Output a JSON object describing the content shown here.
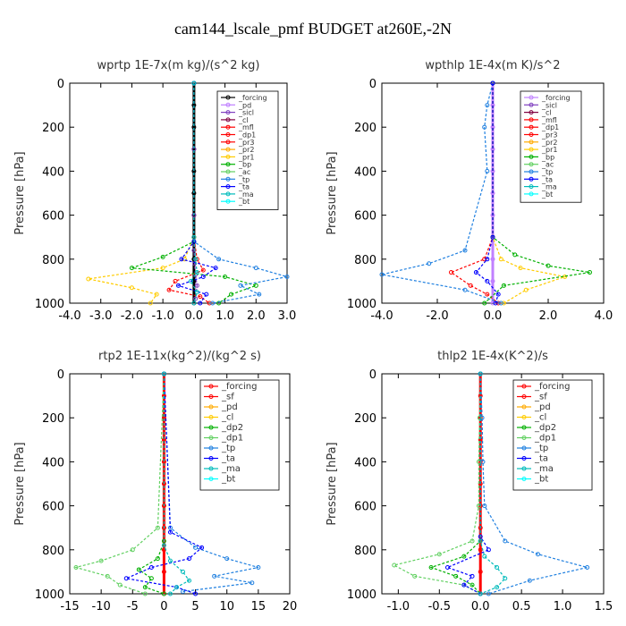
{
  "page": {
    "title": "cam144_lscale_pmf  BUDGET at260E,-2N"
  },
  "chart_data": [
    {
      "type": "line",
      "title": "wprtp  1E-7x(m kg)/(s^2 kg)",
      "ylabel": "Pressure [hPa]",
      "ylim": [
        1000,
        0
      ],
      "yticks": [
        "0",
        "200",
        "400",
        "600",
        "800",
        "1000"
      ],
      "xlim": [
        -4.0,
        3.0
      ],
      "xticks": [
        "-4.0",
        "-3.0",
        "-2.0",
        "-1.0",
        "0.0",
        "1.0",
        "2.0",
        "3.0"
      ],
      "legend": [
        "_forcing",
        "_pd",
        "_sicl",
        "_cl",
        "_mfl",
        "_dp1",
        "_pr3",
        "_pr2",
        "_pr1",
        "_bp",
        "_ac",
        "_tp",
        "_ta",
        "_ma",
        "_bt"
      ],
      "colors": [
        "#000000",
        "#c080ff",
        "#8040c0",
        "#800040",
        "#ff0000",
        "#ff0000",
        "#ff0000",
        "#ffaa00",
        "#ffcc00",
        "#00b000",
        "#60d060",
        "#2080e0",
        "#0000ff",
        "#00bbbb",
        "#00ffff"
      ],
      "series": [
        {
          "name": "_forcing",
          "x": [
            0,
            0,
            0,
            0,
            0,
            0,
            0,
            0,
            0,
            0,
            0
          ],
          "y": [
            0,
            100,
            200,
            300,
            400,
            500,
            600,
            700,
            800,
            900,
            1000
          ]
        },
        {
          "name": "_sicl",
          "x": [
            0,
            0,
            0,
            0,
            0.02,
            0.05,
            0.1,
            0.05
          ],
          "y": [
            0,
            300,
            600,
            760,
            820,
            870,
            920,
            980
          ]
        },
        {
          "name": "_dp1",
          "x": [
            0,
            0,
            0.1,
            0.3,
            -0.6,
            -0.8,
            0.2,
            0.5
          ],
          "y": [
            0,
            700,
            800,
            850,
            900,
            940,
            970,
            1000
          ]
        },
        {
          "name": "_pr1",
          "x": [
            0,
            0,
            -0.3,
            -1.0,
            -3.4,
            -2.0,
            -1.2,
            -1.4
          ],
          "y": [
            0,
            700,
            800,
            840,
            890,
            930,
            960,
            1000
          ]
        },
        {
          "name": "_bp",
          "x": [
            0,
            0,
            -1.0,
            -2.0,
            1.0,
            2.0,
            1.2,
            0.8
          ],
          "y": [
            0,
            720,
            790,
            840,
            880,
            920,
            960,
            1000
          ]
        },
        {
          "name": "_tp",
          "x": [
            0,
            0,
            0.8,
            2.0,
            3.0,
            1.5,
            2.1,
            0.6
          ],
          "y": [
            0,
            720,
            800,
            840,
            880,
            920,
            960,
            1000
          ]
        },
        {
          "name": "_ta",
          "x": [
            0,
            0,
            -0.4,
            0.7,
            0.3,
            -0.5,
            0.4,
            0.2
          ],
          "y": [
            0,
            720,
            800,
            840,
            880,
            920,
            960,
            1000
          ]
        },
        {
          "name": "_ma",
          "x": [
            0,
            0,
            0.05,
            0.1,
            -0.1,
            0.1,
            0
          ],
          "y": [
            0,
            700,
            800,
            860,
            900,
            950,
            1000
          ]
        }
      ]
    },
    {
      "type": "line",
      "title": "wpthlp  1E-4x(m K)/s^2",
      "ylabel": "Pressure [hPa]",
      "ylim": [
        1000,
        0
      ],
      "yticks": [
        "0",
        "200",
        "400",
        "600",
        "800",
        "1000"
      ],
      "xlim": [
        -4.0,
        4.0
      ],
      "xticks": [
        "-4.0",
        "-2.0",
        "0.0",
        "2.0",
        "4.0"
      ],
      "legend": [
        "_forcing",
        "_sicl",
        "_cl",
        "_mfl",
        "_dp1",
        "_pr3",
        "_pr2",
        "_pr1",
        "_bp",
        "_ac",
        "_tp",
        "_ta",
        "_ma",
        "_bt"
      ],
      "colors": [
        "#c080ff",
        "#8040c0",
        "#800040",
        "#ff0000",
        "#ff0000",
        "#ff0000",
        "#ffaa00",
        "#ffcc00",
        "#00b000",
        "#60d060",
        "#2080e0",
        "#0000ff",
        "#00bbbb",
        "#00ffff"
      ],
      "series": [
        {
          "name": "_forcing",
          "x": [
            0,
            0,
            0,
            0,
            0,
            0,
            0,
            0,
            0,
            0,
            0
          ],
          "y": [
            0,
            100,
            200,
            300,
            400,
            500,
            600,
            700,
            800,
            900,
            1000
          ]
        },
        {
          "name": "_dp1",
          "x": [
            0,
            0,
            -0.3,
            -1.5,
            -0.8,
            -0.2,
            0.2
          ],
          "y": [
            0,
            700,
            800,
            860,
            920,
            960,
            1000
          ]
        },
        {
          "name": "_pr1",
          "x": [
            0,
            0,
            0.3,
            1.0,
            2.6,
            1.2,
            0.4
          ],
          "y": [
            0,
            700,
            800,
            840,
            880,
            940,
            1000
          ]
        },
        {
          "name": "_bp",
          "x": [
            0,
            0,
            0.8,
            2.0,
            3.5,
            0.4,
            -0.3
          ],
          "y": [
            0,
            700,
            780,
            830,
            860,
            920,
            1000
          ]
        },
        {
          "name": "_tp",
          "x": [
            0,
            -0.2,
            -0.3,
            -0.2,
            -1.0,
            -2.3,
            -4.0,
            -1.0,
            0.3
          ],
          "y": [
            0,
            100,
            200,
            400,
            760,
            820,
            870,
            940,
            1000
          ]
        },
        {
          "name": "_ta",
          "x": [
            0,
            0,
            -0.2,
            -0.6,
            -0.2,
            0.2,
            0.1
          ],
          "y": [
            0,
            700,
            800,
            860,
            900,
            960,
            1000
          ]
        }
      ]
    },
    {
      "type": "line",
      "title": "rtp2  1E-11x(kg^2)/(kg^2 s)",
      "ylabel": "Pressure [hPa]",
      "ylim": [
        1000,
        0
      ],
      "yticks": [
        "0",
        "200",
        "400",
        "600",
        "800",
        "1000"
      ],
      "xlim": [
        -15,
        20
      ],
      "xticks": [
        "-15",
        "-10",
        "-5",
        "0",
        "5",
        "10",
        "15",
        "20"
      ],
      "legend": [
        "_forcing",
        "_sf",
        "_pd",
        "_cl",
        "_dp2",
        "_dp1",
        "_tp",
        "_ta",
        "_ma",
        "_bt"
      ],
      "colors": [
        "#ff0000",
        "#ff0000",
        "#ffaa00",
        "#ffcc00",
        "#00b000",
        "#60d060",
        "#2080e0",
        "#0000ff",
        "#00bbbb",
        "#00ffff"
      ],
      "series": [
        {
          "name": "_forcing",
          "x": [
            0,
            0,
            0,
            0,
            0,
            0,
            0,
            0,
            0,
            0,
            0
          ],
          "y": [
            0,
            100,
            200,
            300,
            400,
            500,
            600,
            700,
            800,
            900,
            1000
          ]
        },
        {
          "name": "_dp1",
          "x": [
            0,
            -1,
            -5,
            -10,
            -14,
            -9,
            -7,
            -3
          ],
          "y": [
            0,
            700,
            800,
            850,
            880,
            920,
            960,
            1000
          ]
        },
        {
          "name": "_dp2",
          "x": [
            0,
            0,
            -1,
            -4,
            -2,
            -3,
            0
          ],
          "y": [
            0,
            760,
            840,
            890,
            930,
            970,
            1000
          ]
        },
        {
          "name": "_tp",
          "x": [
            0,
            1,
            5,
            10,
            15,
            8,
            14,
            3
          ],
          "y": [
            0,
            700,
            790,
            840,
            880,
            920,
            950,
            990
          ]
        },
        {
          "name": "_ta",
          "x": [
            0,
            1,
            6,
            4,
            -2,
            -6,
            2,
            5
          ],
          "y": [
            0,
            720,
            790,
            840,
            880,
            930,
            970,
            1000
          ]
        },
        {
          "name": "_ma",
          "x": [
            0,
            0,
            1,
            3,
            4,
            2,
            1
          ],
          "y": [
            0,
            780,
            850,
            900,
            940,
            970,
            1000
          ]
        }
      ]
    },
    {
      "type": "line",
      "title": "thlp2  1E-4x(K^2)/s",
      "ylabel": "Pressure [hPa]",
      "ylim": [
        1000,
        0
      ],
      "yticks": [
        "0",
        "200",
        "400",
        "600",
        "800",
        "1000"
      ],
      "xlim": [
        -1.2,
        1.5
      ],
      "xticks": [
        "-1.0",
        "-0.5",
        "0.0",
        "0.5",
        "1.0",
        "1.5"
      ],
      "legend": [
        "_forcing",
        "_sf",
        "_pd",
        "_cl",
        "_dp2",
        "_dp1",
        "_tp",
        "_ta",
        "_ma",
        "_bt"
      ],
      "colors": [
        "#ff0000",
        "#ff0000",
        "#ffaa00",
        "#ffcc00",
        "#00b000",
        "#60d060",
        "#2080e0",
        "#0000ff",
        "#00bbbb",
        "#00ffff"
      ],
      "series": [
        {
          "name": "_forcing",
          "x": [
            0,
            0,
            0,
            0,
            0,
            0,
            0,
            0,
            0,
            0,
            0
          ],
          "y": [
            0,
            100,
            200,
            300,
            400,
            500,
            600,
            700,
            800,
            900,
            1000
          ]
        },
        {
          "name": "_dp1",
          "x": [
            0,
            -0.01,
            -0.02,
            -0.02,
            -0.1,
            -0.5,
            -1.05,
            -0.8,
            -0.2,
            0
          ],
          "y": [
            0,
            200,
            400,
            600,
            760,
            820,
            870,
            920,
            960,
            1000
          ]
        },
        {
          "name": "_dp2",
          "x": [
            0,
            0,
            -0.2,
            -0.6,
            -0.3,
            -0.1,
            0
          ],
          "y": [
            0,
            760,
            830,
            880,
            920,
            960,
            1000
          ]
        },
        {
          "name": "_tp",
          "x": [
            0,
            0.02,
            0.03,
            0.05,
            0.3,
            0.7,
            1.3,
            0.6,
            0.1
          ],
          "y": [
            0,
            200,
            400,
            600,
            760,
            820,
            880,
            940,
            1000
          ]
        },
        {
          "name": "_ta",
          "x": [
            0,
            0,
            0.1,
            -0.4,
            -0.1,
            -0.2,
            0
          ],
          "y": [
            0,
            740,
            800,
            880,
            920,
            960,
            1000
          ]
        },
        {
          "name": "_ma",
          "x": [
            0,
            0,
            0.05,
            0.2,
            0.3,
            0.2,
            0
          ],
          "y": [
            0,
            760,
            830,
            880,
            930,
            970,
            1000
          ]
        }
      ]
    }
  ]
}
